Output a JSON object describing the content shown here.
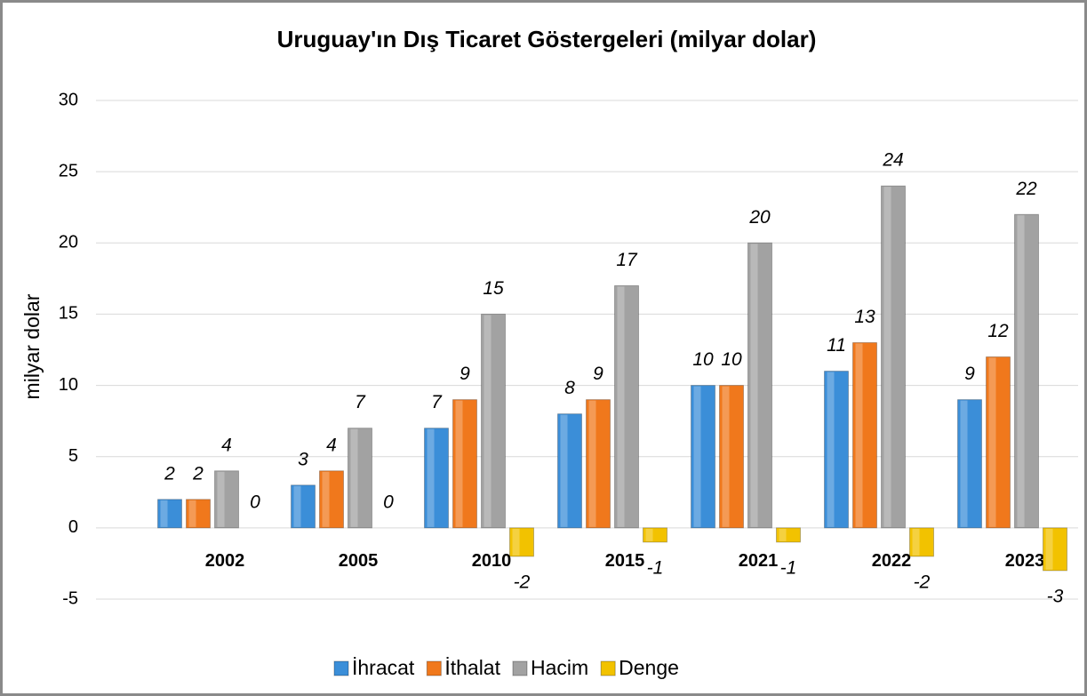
{
  "chart_data": {
    "type": "bar",
    "title": "Uruguay'ın Dış Ticaret Göstergeleri  (milyar dolar)",
    "y_label": "milyar dolar",
    "categories": [
      "2002",
      "2005",
      "2010",
      "2015",
      "2021",
      "2022",
      "2023"
    ],
    "series": [
      {
        "name": "İhracat",
        "color": "#3b8ed8",
        "values": [
          2,
          3,
          7,
          8,
          10,
          11,
          9
        ]
      },
      {
        "name": "İthalat",
        "color": "#f0781c",
        "values": [
          2,
          4,
          9,
          9,
          10,
          13,
          12
        ]
      },
      {
        "name": "Hacim",
        "color": "#a2a2a2",
        "values": [
          4,
          7,
          15,
          17,
          20,
          24,
          22
        ]
      },
      {
        "name": "Denge",
        "color": "#f2c200",
        "values": [
          0,
          0,
          -2,
          -1,
          -1,
          -2,
          -3
        ]
      }
    ],
    "ylim": [
      -5,
      30
    ],
    "yticks": [
      -5,
      0,
      5,
      10,
      15,
      20,
      25,
      30
    ],
    "grid": true,
    "legend": "bottom"
  }
}
